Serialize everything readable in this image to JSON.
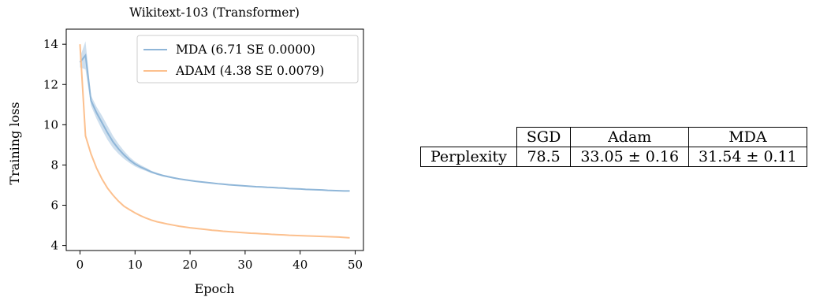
{
  "chart_data": {
    "type": "line",
    "title": "Wikitext-103 (Transformer)",
    "xlabel": "Epoch",
    "ylabel": "Training loss",
    "xlim": [
      -2.5,
      51.5
    ],
    "ylim": [
      3.75,
      14.75
    ],
    "xticks": [
      0,
      10,
      20,
      30,
      40,
      50
    ],
    "yticks": [
      4,
      6,
      8,
      10,
      12,
      14
    ],
    "grid": false,
    "legend_position": "top-right",
    "series": [
      {
        "name": "MDA (6.71 SE 0.0000)",
        "color": "#8fb6d8",
        "band_color": "#c9dcec",
        "x": [
          0,
          1,
          2,
          3,
          4,
          5,
          6,
          7,
          8,
          9,
          10,
          11,
          12,
          13,
          14,
          15,
          16,
          17,
          18,
          19,
          20,
          21,
          22,
          23,
          24,
          25,
          26,
          27,
          28,
          29,
          30,
          31,
          32,
          33,
          34,
          35,
          36,
          37,
          38,
          39,
          40,
          41,
          42,
          43,
          44,
          45,
          46,
          47,
          48,
          49
        ],
        "y": [
          13.1,
          13.45,
          11.2,
          10.6,
          10.1,
          9.6,
          9.15,
          8.8,
          8.5,
          8.25,
          8.05,
          7.9,
          7.78,
          7.65,
          7.56,
          7.48,
          7.42,
          7.36,
          7.31,
          7.27,
          7.23,
          7.19,
          7.16,
          7.13,
          7.1,
          7.07,
          7.05,
          7.02,
          7.0,
          6.98,
          6.96,
          6.94,
          6.92,
          6.91,
          6.89,
          6.88,
          6.86,
          6.85,
          6.83,
          6.82,
          6.81,
          6.79,
          6.78,
          6.77,
          6.76,
          6.74,
          6.73,
          6.72,
          6.71,
          6.71
        ],
        "band": [
          0.25,
          0.7,
          0.25,
          0.3,
          0.35,
          0.35,
          0.3,
          0.25,
          0.2,
          0.15,
          0.12,
          0.1,
          0.08,
          0.06,
          0.05,
          0.05,
          0.04,
          0.04,
          0.03,
          0.03,
          0.03,
          0.02,
          0.02,
          0.02,
          0.02,
          0.02,
          0.02,
          0.02,
          0.02,
          0.02,
          0.02,
          0.02,
          0.02,
          0.02,
          0.02,
          0.02,
          0.02,
          0.02,
          0.02,
          0.02,
          0.02,
          0.02,
          0.02,
          0.02,
          0.02,
          0.02,
          0.02,
          0.02,
          0.02,
          0.02
        ]
      },
      {
        "name": "ADAM (4.38 SE 0.0079)",
        "color": "#fcc08e",
        "band_color": "#fde2c8",
        "x": [
          0,
          1,
          2,
          3,
          4,
          5,
          6,
          7,
          8,
          9,
          10,
          11,
          12,
          13,
          14,
          15,
          16,
          17,
          18,
          19,
          20,
          21,
          22,
          23,
          24,
          25,
          26,
          27,
          28,
          29,
          30,
          31,
          32,
          33,
          34,
          35,
          36,
          37,
          38,
          39,
          40,
          41,
          42,
          43,
          44,
          45,
          46,
          47,
          48,
          49
        ],
        "y": [
          14.0,
          9.45,
          8.55,
          7.85,
          7.3,
          6.85,
          6.5,
          6.2,
          5.95,
          5.78,
          5.62,
          5.48,
          5.36,
          5.26,
          5.18,
          5.12,
          5.06,
          5.01,
          4.96,
          4.92,
          4.88,
          4.85,
          4.82,
          4.79,
          4.76,
          4.74,
          4.71,
          4.69,
          4.67,
          4.65,
          4.63,
          4.61,
          4.6,
          4.58,
          4.57,
          4.55,
          4.54,
          4.53,
          4.51,
          4.5,
          4.49,
          4.48,
          4.47,
          4.46,
          4.45,
          4.44,
          4.43,
          4.42,
          4.4,
          4.38
        ],
        "band": [
          0.05,
          0.1,
          0.06,
          0.05,
          0.04,
          0.04,
          0.03,
          0.03,
          0.03,
          0.03,
          0.02,
          0.02,
          0.02,
          0.02,
          0.02,
          0.02,
          0.02,
          0.02,
          0.02,
          0.02,
          0.02,
          0.02,
          0.02,
          0.02,
          0.02,
          0.02,
          0.02,
          0.02,
          0.02,
          0.02,
          0.02,
          0.02,
          0.02,
          0.02,
          0.02,
          0.02,
          0.02,
          0.02,
          0.02,
          0.02,
          0.02,
          0.02,
          0.02,
          0.02,
          0.02,
          0.02,
          0.02,
          0.02,
          0.02,
          0.02
        ]
      }
    ]
  },
  "table": {
    "headers": [
      "",
      "SGD",
      "Adam",
      "MDA"
    ],
    "row_label": "Perplexity",
    "values": [
      "78.5",
      "33.05 ± 0.16",
      "31.54 ± 0.11"
    ]
  }
}
